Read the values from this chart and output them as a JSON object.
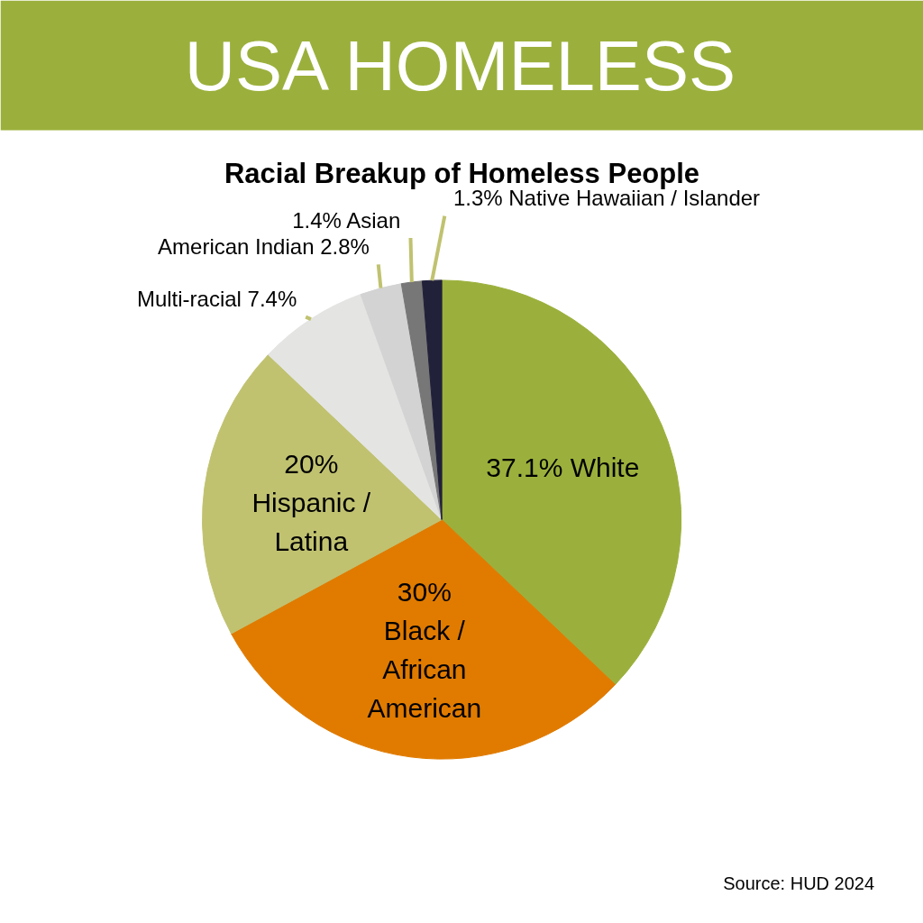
{
  "chart_data": {
    "type": "pie",
    "title": "USA HOMELESS",
    "subtitle": "Racial Breakup of Homeless People",
    "categories": [
      "White",
      "Black /\nAfrican\nAmerican",
      "Hispanic /\nLatina",
      "Multi-racial",
      "American Indian",
      "Asian",
      "Native Hawaiian / Islander"
    ],
    "values": [
      37.1,
      30,
      20,
      7.4,
      2.8,
      1.4,
      1.3
    ],
    "colors": [
      "#9bb03c",
      "#e07b00",
      "#c0c270",
      "#e4e5e3",
      "#d3d3d3",
      "#777777",
      "#22213a"
    ],
    "value_labels": [
      "37.1%",
      "30%",
      "20%",
      "7.4%",
      "2.8%",
      "1.4%",
      "1.3%"
    ],
    "annotations": [
      "Source: HUD 2024"
    ]
  }
}
